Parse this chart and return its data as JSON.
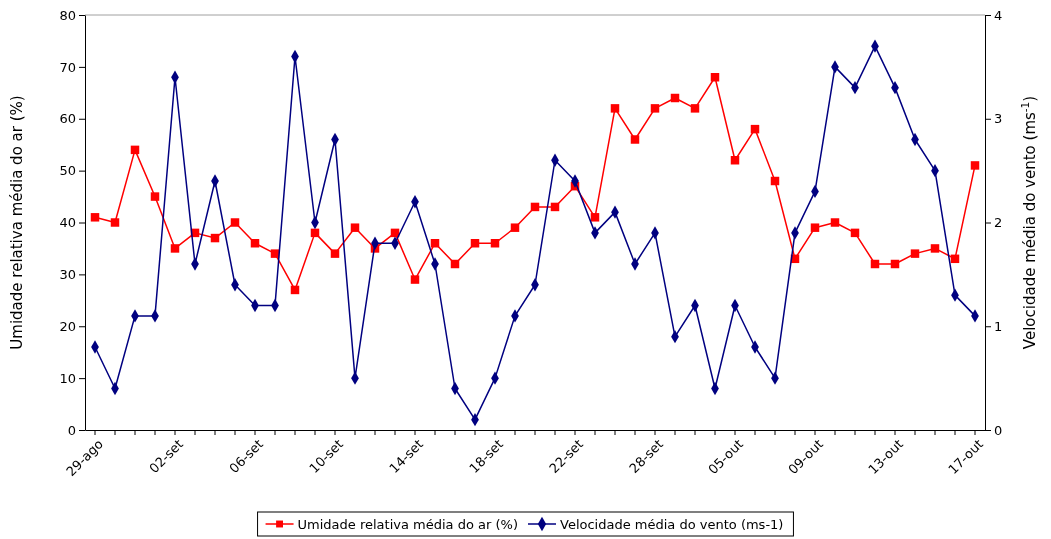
{
  "chart_data": {
    "type": "line",
    "ylabel": "Umidade relativa média do ar (%)",
    "y2label": "Velocidade média do vento (ms$^{-1}$)",
    "categories": [
      "29-ago",
      null,
      null,
      null,
      "02-set",
      null,
      null,
      null,
      "06-set",
      null,
      null,
      null,
      "10-set",
      null,
      null,
      null,
      "14-set",
      null,
      null,
      null,
      "18-set",
      null,
      null,
      null,
      "22-set",
      null,
      null,
      null,
      "28-set",
      null,
      null,
      null,
      "05-out",
      null,
      null,
      null,
      "09-out",
      null,
      null,
      null,
      "13-out",
      null,
      null,
      null,
      "17-out"
    ],
    "ylim": [
      0,
      80
    ],
    "yticks": [
      0,
      10,
      20,
      30,
      40,
      50,
      60,
      70,
      80
    ],
    "y2lim": [
      0,
      4
    ],
    "y2ticks": [
      0,
      1,
      2,
      3,
      4
    ],
    "grid": false,
    "legend": "bottom",
    "series": [
      {
        "name": "Umidade relativa média do ar (%)",
        "color": "#ff0000",
        "marker": "square",
        "values": [
          41,
          40,
          54,
          45,
          35,
          38,
          37,
          40,
          36,
          34,
          27,
          38,
          34,
          39,
          35,
          38,
          29,
          36,
          32,
          36,
          36,
          39,
          43,
          43,
          47,
          41,
          62,
          56,
          62,
          64,
          62,
          68,
          52,
          58,
          48,
          33,
          39,
          40,
          38,
          32,
          32,
          34,
          35,
          33,
          51
        ]
      },
      {
        "name": "Velocidade média do vento (ms-1)",
        "color": "#000080",
        "marker": "diamond",
        "axis": "y2",
        "values": [
          0.8,
          0.4,
          1.1,
          1.1,
          3.4,
          1.6,
          2.4,
          1.4,
          1.2,
          1.2,
          3.6,
          2.0,
          2.8,
          0.5,
          1.8,
          1.8,
          2.2,
          1.6,
          0.4,
          0.1,
          0.5,
          1.1,
          1.4,
          2.6,
          2.4,
          1.9,
          2.1,
          1.6,
          1.9,
          0.9,
          1.2,
          0.4,
          1.2,
          0.8,
          0.5,
          1.9,
          2.3,
          3.5,
          3.3,
          3.7,
          3.3,
          2.8,
          2.5,
          1.3,
          1.1
        ]
      }
    ]
  }
}
